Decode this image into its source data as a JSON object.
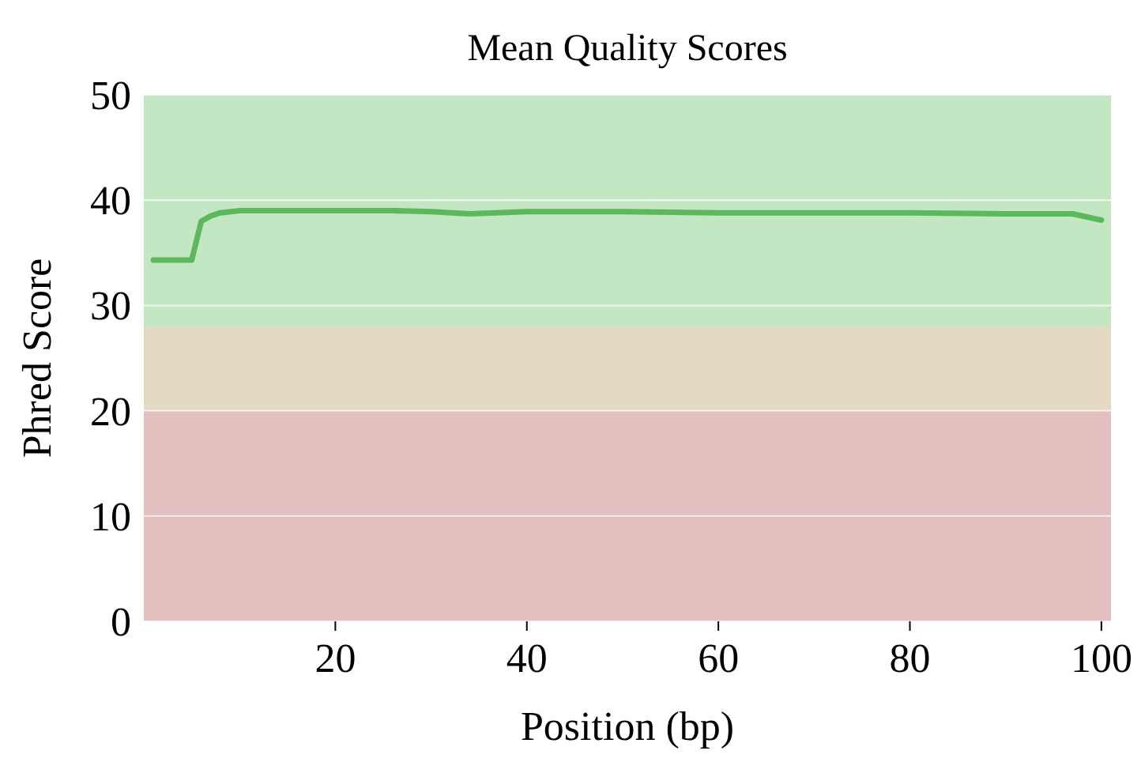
{
  "chart_data": {
    "type": "line",
    "title": "Mean Quality Scores",
    "xlabel": "Position (bp)",
    "ylabel": "Phred Score",
    "x": [
      1,
      2,
      3,
      4,
      5,
      6,
      7,
      8,
      10,
      15,
      20,
      26,
      30,
      34,
      40,
      50,
      60,
      70,
      80,
      90,
      97,
      100
    ],
    "series": [
      {
        "color": "#5cb85c",
        "values": [
          34.3,
          34.3,
          34.3,
          34.3,
          34.3,
          38.0,
          38.5,
          38.8,
          39.0,
          39.0,
          39.0,
          39.0,
          38.9,
          38.7,
          38.9,
          38.9,
          38.8,
          38.8,
          38.8,
          38.7,
          38.7,
          38.1
        ]
      }
    ],
    "xlim": [
      0,
      101
    ],
    "ylim": [
      0,
      50
    ],
    "xticks": [
      20,
      40,
      60,
      80,
      100
    ],
    "yticks": [
      0,
      10,
      20,
      30,
      40,
      50
    ],
    "bands": [
      {
        "axis": "y",
        "from": 0,
        "to": 20,
        "color": "#e4bfbf"
      },
      {
        "axis": "y",
        "from": 20,
        "to": 28,
        "color": "#e4d9c2"
      },
      {
        "axis": "y",
        "from": 28,
        "to": 50,
        "color": "#c3e6c3"
      }
    ],
    "grid": "y",
    "marker": "none",
    "line_style": "solid"
  }
}
